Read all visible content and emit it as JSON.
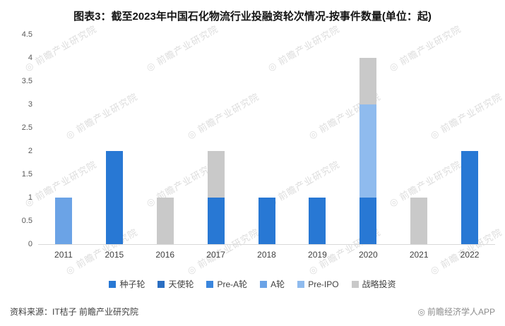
{
  "watermark": {
    "icon": "◎",
    "text": "前瞻产业研究院"
  },
  "footer": {
    "source_label": "资料来源：IT桔子 前瞻产业研究院",
    "brand_icon": "◎",
    "brand_label": "前瞻经济学人APP"
  },
  "chart_data": {
    "type": "bar",
    "stacked": true,
    "title": "图表3：截至2023年中国石化物流行业投融资轮次情况-按事件数量(单位：起)",
    "categories": [
      "2011",
      "2015",
      "2016",
      "2017",
      "2018",
      "2019",
      "2020",
      "2021",
      "2022"
    ],
    "series": [
      {
        "name": "种子轮",
        "color": "#2878d4",
        "values": [
          0,
          2,
          0,
          1,
          1,
          1,
          1,
          0,
          2
        ]
      },
      {
        "name": "天使轮",
        "color": "#2a6ec2",
        "values": [
          0,
          0,
          0,
          0,
          0,
          0,
          0,
          0,
          0
        ]
      },
      {
        "name": "Pre-A轮",
        "color": "#3a86dd",
        "values": [
          0,
          0,
          0,
          0,
          0,
          0,
          0,
          0,
          0
        ]
      },
      {
        "name": "A轮",
        "color": "#6ba3e6",
        "values": [
          1,
          0,
          0,
          0,
          0,
          0,
          0,
          0,
          0
        ]
      },
      {
        "name": "Pre-IPO",
        "color": "#8fbbee",
        "values": [
          0,
          0,
          0,
          0,
          0,
          0,
          2,
          0,
          0
        ]
      },
      {
        "name": "战略投资",
        "color": "#c9c9c9",
        "values": [
          0,
          0,
          1,
          1,
          0,
          0,
          1,
          1,
          0
        ]
      }
    ],
    "totals": {
      "2011": 1,
      "2015": 2,
      "2016": 1,
      "2017": 2,
      "2018": 1,
      "2019": 1,
      "2020": 4,
      "2021": 1,
      "2022": 2
    },
    "ylim": [
      0,
      4.5
    ],
    "yticks": [
      0,
      0.5,
      1,
      1.5,
      2,
      2.5,
      3,
      3.5,
      4,
      4.5
    ],
    "grid": false,
    "legend_position": "bottom"
  }
}
